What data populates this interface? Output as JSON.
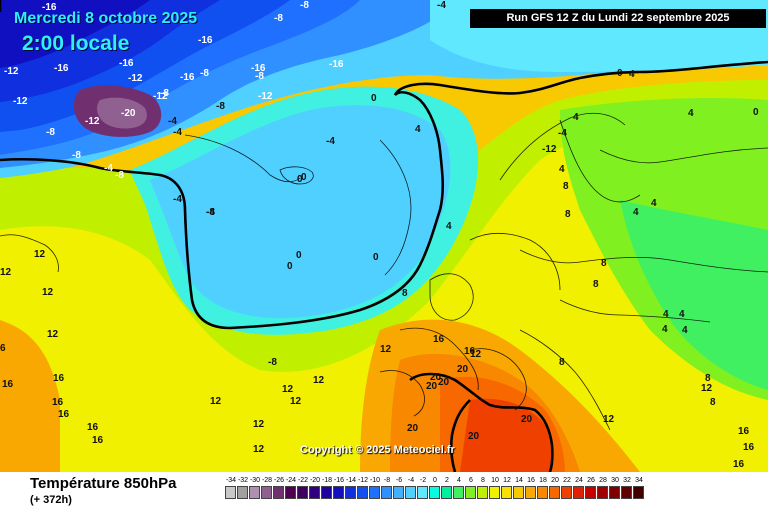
{
  "header": {
    "date": "Mercredi 8 octobre 2025",
    "time": "2:00 locale",
    "run": "Run GFS 12 Z du Lundi 22 septembre 2025"
  },
  "copyright": "Copyright © 2025 Meteociel.fr",
  "footer": {
    "title": "Température 850hPa",
    "subtitle": "(+ 372h)"
  },
  "legend": [
    {
      "label": "-34",
      "color": "#c8c8c8"
    },
    {
      "label": "-32",
      "color": "#a0a0a0"
    },
    {
      "label": "-30",
      "color": "#b090b0"
    },
    {
      "label": "-28",
      "color": "#906090"
    },
    {
      "label": "-26",
      "color": "#703070"
    },
    {
      "label": "-24",
      "color": "#500050"
    },
    {
      "label": "-22",
      "color": "#400060"
    },
    {
      "label": "-20",
      "color": "#300080"
    },
    {
      "label": "-18",
      "color": "#2000a0"
    },
    {
      "label": "-16",
      "color": "#1010c0"
    },
    {
      "label": "-14",
      "color": "#1030e0"
    },
    {
      "label": "-12",
      "color": "#1050f0"
    },
    {
      "label": "-10",
      "color": "#2070ff"
    },
    {
      "label": "-8",
      "color": "#3090ff"
    },
    {
      "label": "-6",
      "color": "#40b0ff"
    },
    {
      "label": "-4",
      "color": "#50d0ff"
    },
    {
      "label": "-2",
      "color": "#60e8ff"
    },
    {
      "label": "0",
      "color": "#00ffe0"
    },
    {
      "label": "2",
      "color": "#00f0a0"
    },
    {
      "label": "4",
      "color": "#40f060"
    },
    {
      "label": "6",
      "color": "#80f020"
    },
    {
      "label": "8",
      "color": "#c0f000"
    },
    {
      "label": "10",
      "color": "#f0f000"
    },
    {
      "label": "12",
      "color": "#f8e000"
    },
    {
      "label": "14",
      "color": "#f8c800"
    },
    {
      "label": "16",
      "color": "#f8a800"
    },
    {
      "label": "18",
      "color": "#f88800"
    },
    {
      "label": "20",
      "color": "#f86800"
    },
    {
      "label": "22",
      "color": "#f04000"
    },
    {
      "label": "24",
      "color": "#e02000"
    },
    {
      "label": "26",
      "color": "#c80000"
    },
    {
      "label": "28",
      "color": "#a00000"
    },
    {
      "label": "30",
      "color": "#800000"
    },
    {
      "label": "32",
      "color": "#600000"
    },
    {
      "label": "34",
      "color": "#400000"
    }
  ],
  "map_labels": [
    {
      "t": "-16"
    },
    {
      "t": "-8"
    },
    {
      "t": "-4"
    },
    {
      "t": "-8"
    },
    {
      "t": "-16"
    },
    {
      "t": "-16"
    },
    {
      "t": "-12"
    },
    {
      "t": "-16"
    },
    {
      "t": "-8"
    },
    {
      "t": "-16"
    },
    {
      "t": "-12"
    },
    {
      "t": "-16"
    },
    {
      "t": "-8"
    },
    {
      "t": "-12"
    },
    {
      "t": "-12"
    },
    {
      "t": "-8"
    },
    {
      "t": "-8"
    },
    {
      "t": "-12"
    },
    {
      "t": "-20"
    },
    {
      "t": "-12"
    },
    {
      "t": "-16"
    },
    {
      "t": "-8"
    },
    {
      "t": "-4"
    },
    {
      "t": "-4"
    },
    {
      "t": "-4"
    },
    {
      "t": "-8"
    },
    {
      "t": "-8"
    },
    {
      "t": "-4"
    },
    {
      "t": "-8"
    },
    {
      "t": "-4"
    },
    {
      "t": "0"
    },
    {
      "t": "-4"
    },
    {
      "t": "0"
    },
    {
      "t": "4"
    },
    {
      "t": "-4"
    },
    {
      "t": "4"
    },
    {
      "t": "0"
    },
    {
      "t": "0"
    },
    {
      "t": "0"
    },
    {
      "t": "8"
    },
    {
      "t": "4"
    },
    {
      "t": "12"
    },
    {
      "t": "12"
    },
    {
      "t": "12"
    },
    {
      "t": "12"
    },
    {
      "t": "12"
    },
    {
      "t": "6"
    },
    {
      "t": "-8"
    },
    {
      "t": "16"
    },
    {
      "t": "16"
    },
    {
      "t": "16"
    },
    {
      "t": "16"
    },
    {
      "t": "12"
    },
    {
      "t": "12"
    },
    {
      "t": "12"
    },
    {
      "t": "12"
    },
    {
      "t": "12"
    },
    {
      "t": "12"
    },
    {
      "t": "16"
    },
    {
      "t": "16"
    },
    {
      "t": "16"
    },
    {
      "t": "16"
    },
    {
      "t": "20"
    },
    {
      "t": "20"
    },
    {
      "t": "20"
    },
    {
      "t": "20"
    },
    {
      "t": "20"
    },
    {
      "t": "20"
    },
    {
      "t": "20"
    },
    {
      "t": "12"
    },
    {
      "t": "16"
    },
    {
      "t": "16"
    },
    {
      "t": "16"
    },
    {
      "t": "0"
    },
    {
      "t": "0"
    },
    {
      "t": "4"
    },
    {
      "t": "4"
    },
    {
      "t": "4"
    },
    {
      "t": "4"
    },
    {
      "t": "-12"
    },
    {
      "t": "8"
    },
    {
      "t": "8"
    },
    {
      "t": "8"
    },
    {
      "t": "8"
    },
    {
      "t": "4"
    },
    {
      "t": "4"
    },
    {
      "t": "4"
    },
    {
      "t": "4"
    },
    {
      "t": "8"
    },
    {
      "t": "8"
    },
    {
      "t": "12"
    },
    {
      "t": "0"
    },
    {
      "t": "4"
    },
    {
      "t": "8"
    },
    {
      "t": "12"
    }
  ]
}
